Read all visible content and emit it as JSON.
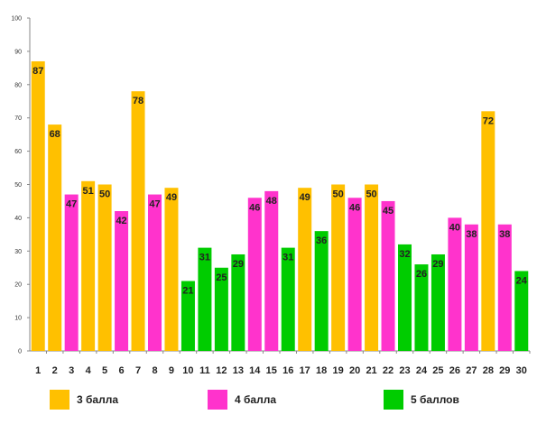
{
  "chart_data": {
    "type": "bar",
    "categories": [
      "1",
      "2",
      "3",
      "4",
      "5",
      "6",
      "7",
      "8",
      "9",
      "10",
      "11",
      "12",
      "13",
      "14",
      "15",
      "16",
      "17",
      "18",
      "19",
      "20",
      "21",
      "22",
      "23",
      "24",
      "25",
      "26",
      "27",
      "28",
      "29",
      "30"
    ],
    "values": [
      87,
      68,
      47,
      51,
      50,
      42,
      78,
      47,
      49,
      21,
      31,
      25,
      29,
      46,
      48,
      31,
      49,
      36,
      50,
      46,
      50,
      45,
      32,
      26,
      29,
      40,
      38,
      72,
      38,
      24
    ],
    "value_groups": [
      "3 балла",
      "3 балла",
      "4 балла",
      "3 балла",
      "3 балла",
      "4 балла",
      "3 балла",
      "4 балла",
      "3 балла",
      "5 баллов",
      "5 баллов",
      "5 баллов",
      "5 баллов",
      "4 балла",
      "4 балла",
      "5 баллов",
      "3 балла",
      "5 баллов",
      "3 балла",
      "4 балла",
      "3 балла",
      "4 балла",
      "5 баллов",
      "5 баллов",
      "5 баллов",
      "4 балла",
      "4 балла",
      "3 балла",
      "4 балла",
      "5 баллов"
    ],
    "ylim": [
      0,
      100
    ],
    "yticks": [
      0,
      10,
      20,
      30,
      40,
      50,
      60,
      70,
      80,
      90,
      100
    ],
    "grid": false,
    "data_labels": true,
    "legend": {
      "placement": "bottom",
      "entries": [
        {
          "name": "3 балла",
          "color": "#FFC000"
        },
        {
          "name": "4 балла",
          "color": "#FF33CC"
        },
        {
          "name": "5 баллов",
          "color": "#00CC00"
        }
      ]
    },
    "title": "",
    "xlabel": "",
    "ylabel": ""
  }
}
